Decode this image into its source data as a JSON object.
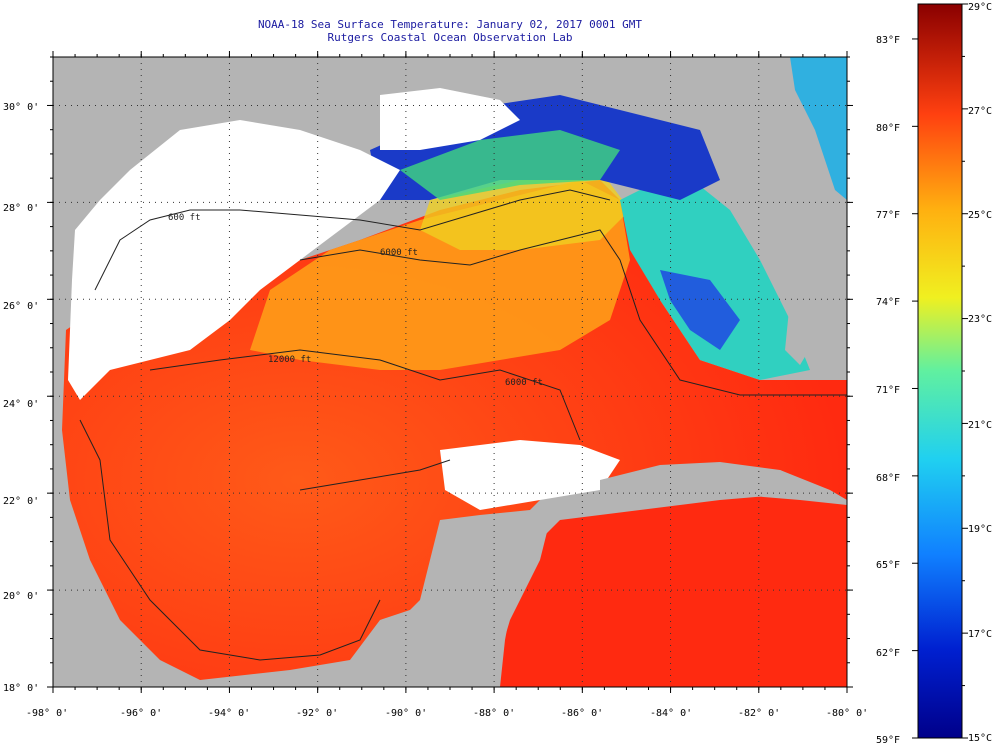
{
  "header": {
    "title": "NOAA-18 Sea Surface Temperature:  January 02, 2017 0001 GMT",
    "subtitle": "Rutgers Coastal Ocean Observation Lab"
  },
  "map": {
    "region": "Gulf of Mexico",
    "lon_range": [
      -98,
      -80
    ],
    "lat_range": [
      18,
      31
    ],
    "x_ticks": [
      "-98° 0'",
      "-96° 0'",
      "-94° 0'",
      "-92° 0'",
      "-90° 0'",
      "-88° 0'",
      "-86° 0'",
      "-84° 0'",
      "-82° 0'",
      "-80° 0'"
    ],
    "y_ticks": [
      "30° 0'",
      "28° 0'",
      "26° 0'",
      "24° 0'",
      "22° 0'",
      "20° 0'",
      "18° 0'"
    ],
    "contour_labels": [
      "600 ft",
      "6000 ft",
      "12000 ft",
      "6000 ft"
    ],
    "colors": {
      "land": "#b4b4b4",
      "cloud": "#ffffff",
      "warm": "#ff3010",
      "mid": "#ff9a10",
      "cool": "#30c8ff",
      "cold": "#0a1a9a"
    }
  },
  "colorbar": {
    "min_c": 15,
    "max_c": 29,
    "celsius_labels": [
      "29°C",
      "27°C",
      "25°C",
      "23°C",
      "21°C",
      "19°C",
      "17°C",
      "15°C"
    ],
    "fahrenheit_labels": [
      "83°F",
      "80°F",
      "77°F",
      "74°F",
      "71°F",
      "68°F",
      "65°F",
      "62°F",
      "59°F"
    ]
  }
}
